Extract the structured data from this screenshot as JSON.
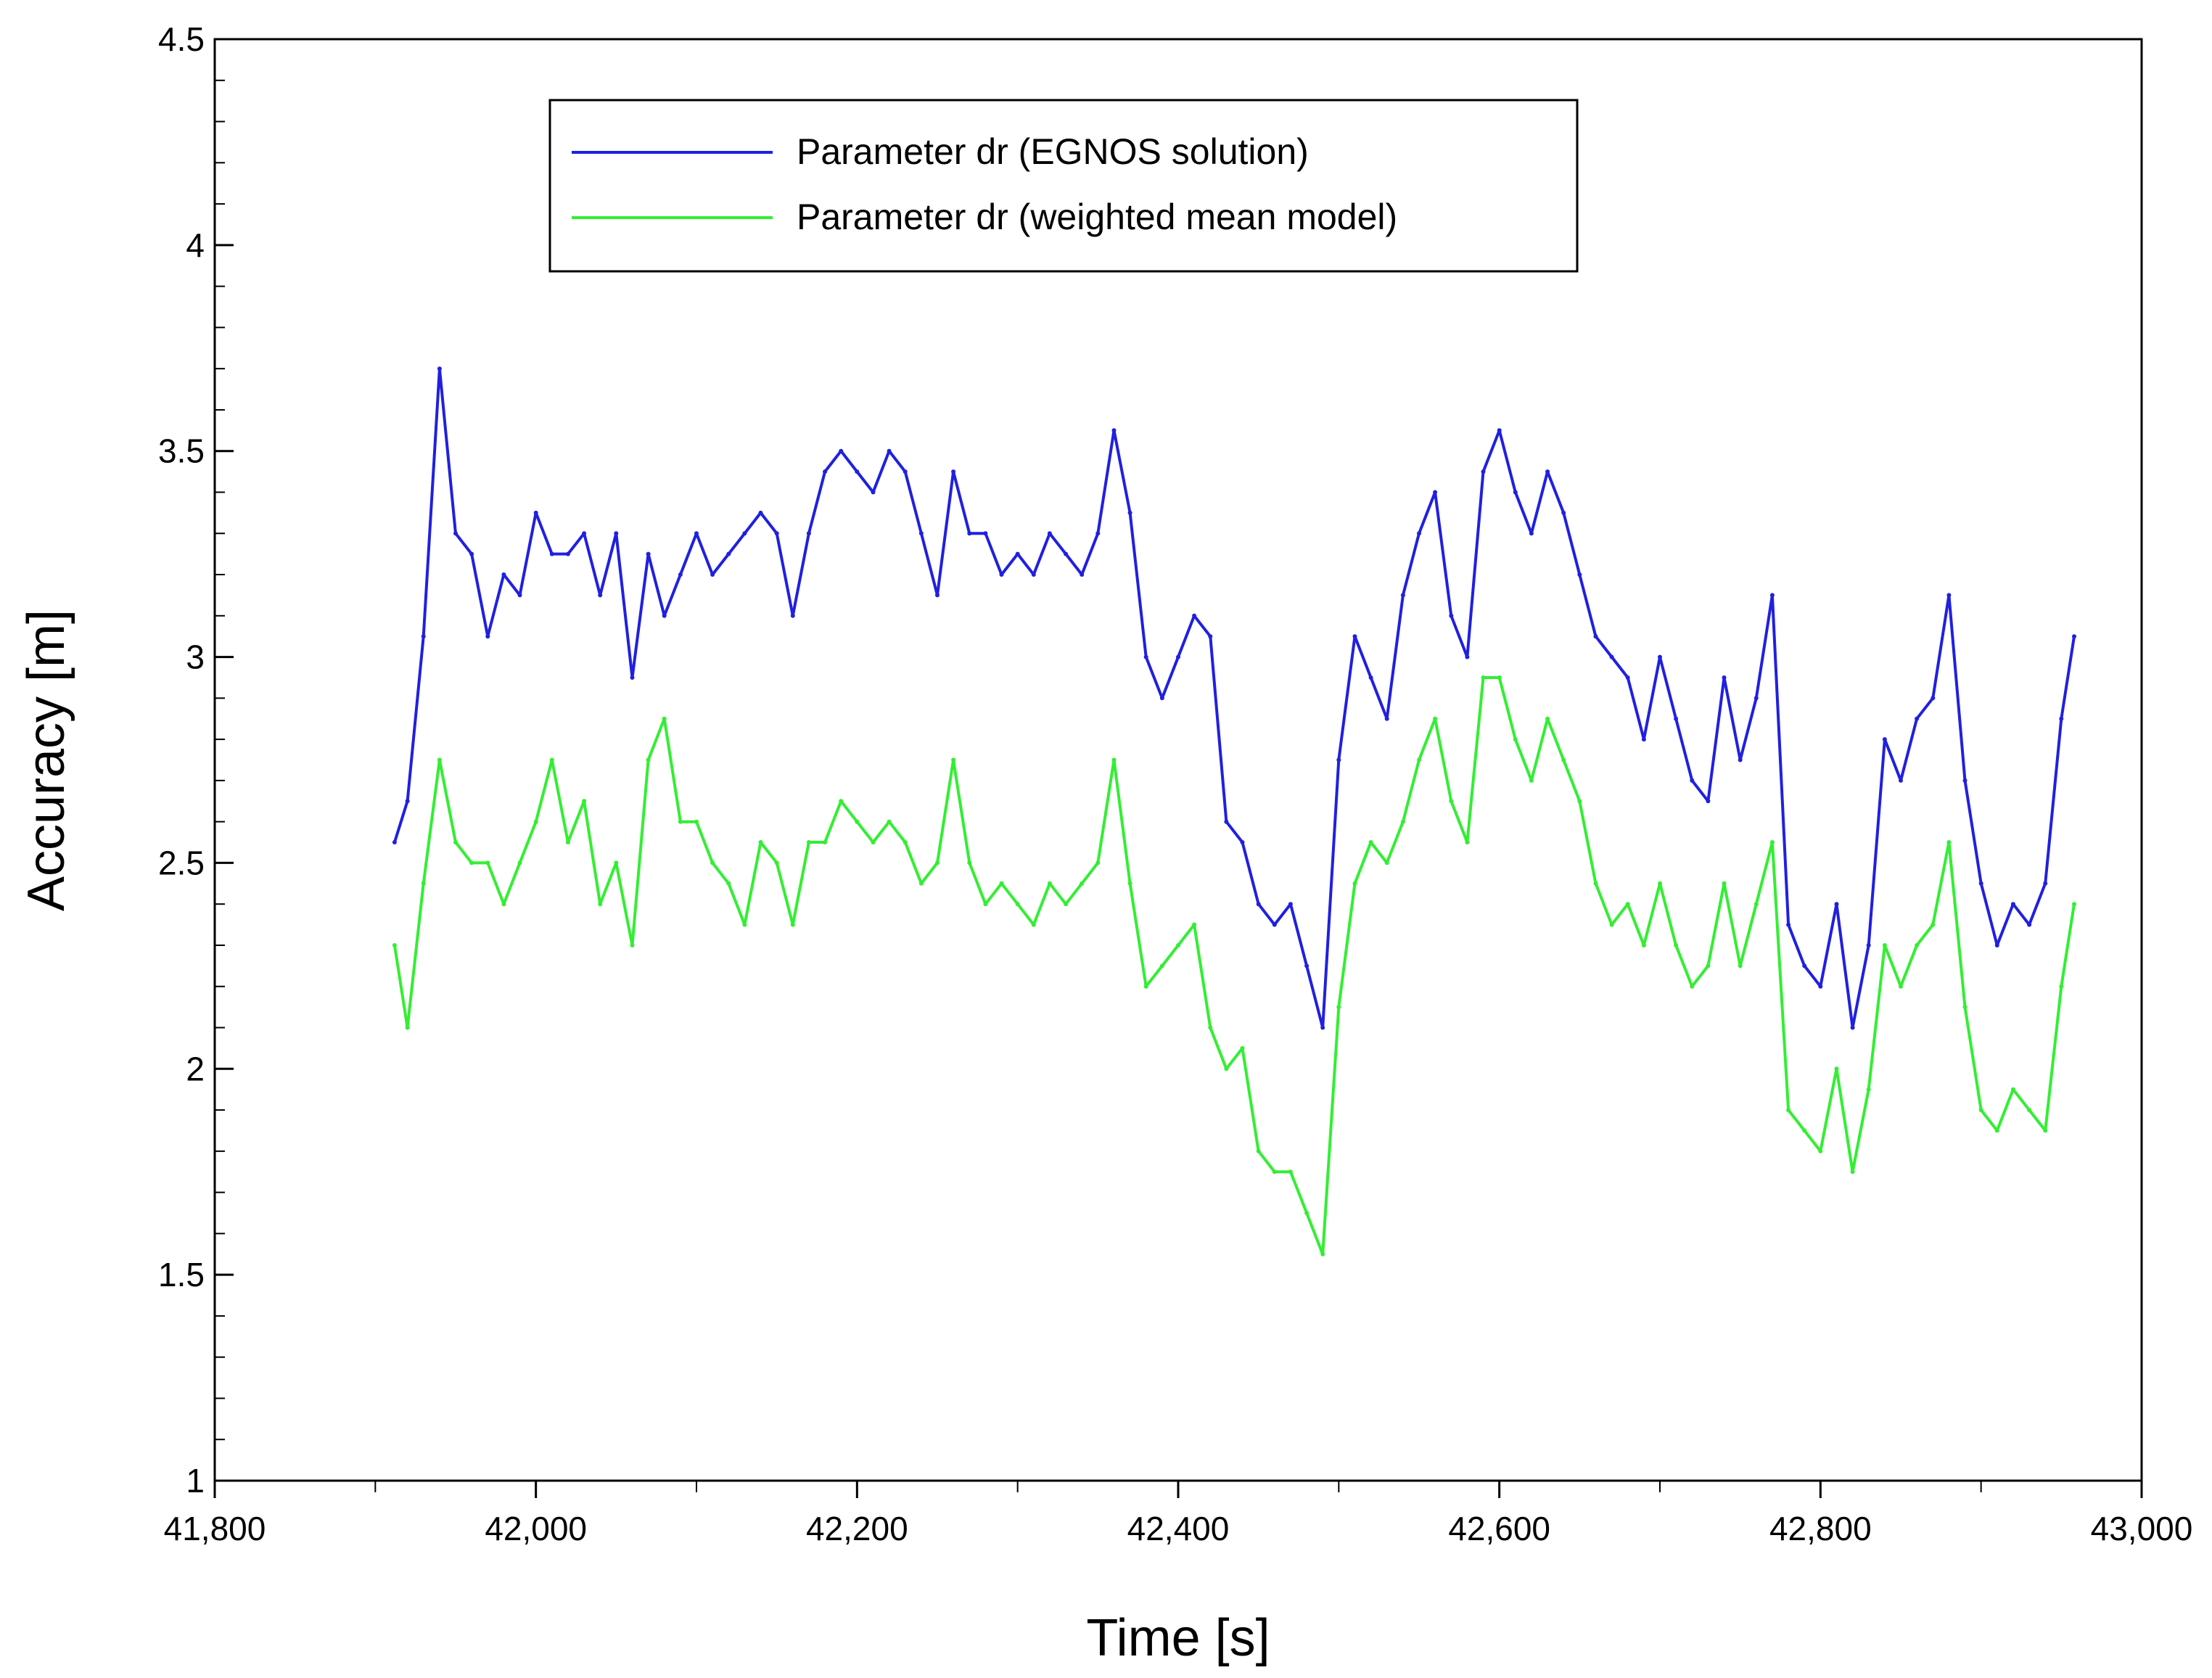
{
  "chart_data": {
    "type": "line",
    "xlabel": "Time [s]",
    "ylabel": "Accuracy [m]",
    "xlim": [
      41800,
      43000
    ],
    "ylim": [
      1,
      4.5
    ],
    "x_ticks": [
      "41,800",
      "42,000",
      "42,200",
      "42,400",
      "42,600",
      "42,800",
      "43,000"
    ],
    "x_tick_values": [
      41800,
      42000,
      42200,
      42400,
      42600,
      42800,
      43000
    ],
    "y_ticks": [
      "1",
      "1.5",
      "2",
      "2.5",
      "3",
      "3.5",
      "4",
      "4.5"
    ],
    "y_tick_values": [
      1,
      1.5,
      2,
      2.5,
      3,
      3.5,
      4,
      4.5
    ],
    "grid": false,
    "legend_position": "top-center",
    "series": [
      {
        "name": "Parameter dr (EGNOS solution)",
        "color": "#2020e0",
        "x": [
          41912,
          41920,
          41930,
          41940,
          41950,
          41960,
          41970,
          41980,
          41990,
          42000,
          42010,
          42020,
          42030,
          42040,
          42050,
          42060,
          42070,
          42080,
          42090,
          42100,
          42110,
          42120,
          42130,
          42140,
          42150,
          42160,
          42170,
          42180,
          42190,
          42200,
          42210,
          42220,
          42230,
          42240,
          42250,
          42260,
          42270,
          42280,
          42290,
          42300,
          42310,
          42320,
          42330,
          42340,
          42350,
          42360,
          42370,
          42380,
          42390,
          42400,
          42410,
          42420,
          42430,
          42440,
          42450,
          42460,
          42470,
          42480,
          42490,
          42500,
          42510,
          42520,
          42530,
          42540,
          42550,
          42560,
          42570,
          42580,
          42590,
          42600,
          42610,
          42620,
          42630,
          42640,
          42650,
          42660,
          42670,
          42680,
          42690,
          42700,
          42710,
          42720,
          42730,
          42740,
          42750,
          42760,
          42770,
          42780,
          42790,
          42800,
          42810,
          42820,
          42830,
          42840,
          42850,
          42860,
          42870,
          42880,
          42890,
          42900,
          42910,
          42920,
          42930,
          42940,
          42950,
          42958
        ],
        "y": [
          2.55,
          2.65,
          3.05,
          3.7,
          3.3,
          3.25,
          3.05,
          3.2,
          3.15,
          3.35,
          3.25,
          3.25,
          3.3,
          3.15,
          3.3,
          2.95,
          3.25,
          3.1,
          3.2,
          3.3,
          3.2,
          3.25,
          3.3,
          3.35,
          3.3,
          3.1,
          3.3,
          3.45,
          3.5,
          3.45,
          3.4,
          3.5,
          3.45,
          3.3,
          3.15,
          3.45,
          3.3,
          3.3,
          3.2,
          3.25,
          3.2,
          3.3,
          3.25,
          3.2,
          3.3,
          3.55,
          3.35,
          3.0,
          2.9,
          3.0,
          3.1,
          3.05,
          2.6,
          2.55,
          2.4,
          2.35,
          2.4,
          2.25,
          2.1,
          2.75,
          3.05,
          2.95,
          2.85,
          3.15,
          3.3,
          3.4,
          3.1,
          3.0,
          3.45,
          3.55,
          3.4,
          3.3,
          3.45,
          3.35,
          3.2,
          3.05,
          3.0,
          2.95,
          2.8,
          3.0,
          2.85,
          2.7,
          2.65,
          2.95,
          2.75,
          2.9,
          3.15,
          2.35,
          2.25,
          2.2,
          2.4,
          2.1,
          2.3,
          2.8,
          2.7,
          2.85,
          2.9,
          3.15,
          2.7,
          2.45,
          2.3,
          2.4,
          2.35,
          2.45,
          2.85,
          3.05
        ]
      },
      {
        "name": "Parameter dr (weighted mean model)",
        "color": "#33ee33",
        "x": [
          41912,
          41920,
          41930,
          41940,
          41950,
          41960,
          41970,
          41980,
          41990,
          42000,
          42010,
          42020,
          42030,
          42040,
          42050,
          42060,
          42070,
          42080,
          42090,
          42100,
          42110,
          42120,
          42130,
          42140,
          42150,
          42160,
          42170,
          42180,
          42190,
          42200,
          42210,
          42220,
          42230,
          42240,
          42250,
          42260,
          42270,
          42280,
          42290,
          42300,
          42310,
          42320,
          42330,
          42340,
          42350,
          42360,
          42370,
          42380,
          42390,
          42400,
          42410,
          42420,
          42430,
          42440,
          42450,
          42460,
          42470,
          42480,
          42490,
          42500,
          42510,
          42520,
          42530,
          42540,
          42550,
          42560,
          42570,
          42580,
          42590,
          42600,
          42610,
          42620,
          42630,
          42640,
          42650,
          42660,
          42670,
          42680,
          42690,
          42700,
          42710,
          42720,
          42730,
          42740,
          42750,
          42760,
          42770,
          42780,
          42790,
          42800,
          42810,
          42820,
          42830,
          42840,
          42850,
          42860,
          42870,
          42880,
          42890,
          42900,
          42910,
          42920,
          42930,
          42940,
          42950,
          42958
        ],
        "y": [
          2.3,
          2.1,
          2.45,
          2.75,
          2.55,
          2.5,
          2.5,
          2.4,
          2.5,
          2.6,
          2.75,
          2.55,
          2.65,
          2.4,
          2.5,
          2.3,
          2.75,
          2.85,
          2.6,
          2.6,
          2.5,
          2.45,
          2.35,
          2.55,
          2.5,
          2.35,
          2.55,
          2.55,
          2.65,
          2.6,
          2.55,
          2.6,
          2.55,
          2.45,
          2.5,
          2.75,
          2.5,
          2.4,
          2.45,
          2.4,
          2.35,
          2.45,
          2.4,
          2.45,
          2.5,
          2.75,
          2.45,
          2.2,
          2.25,
          2.3,
          2.35,
          2.1,
          2.0,
          2.05,
          1.8,
          1.75,
          1.75,
          1.65,
          1.55,
          2.15,
          2.45,
          2.55,
          2.5,
          2.6,
          2.75,
          2.85,
          2.65,
          2.55,
          2.95,
          2.95,
          2.8,
          2.7,
          2.85,
          2.75,
          2.65,
          2.45,
          2.35,
          2.4,
          2.3,
          2.45,
          2.3,
          2.2,
          2.25,
          2.45,
          2.25,
          2.4,
          2.55,
          1.9,
          1.85,
          1.8,
          2.0,
          1.75,
          1.95,
          2.3,
          2.2,
          2.3,
          2.35,
          2.55,
          2.15,
          1.9,
          1.85,
          1.95,
          1.9,
          1.85,
          2.2,
          2.4
        ]
      }
    ]
  }
}
